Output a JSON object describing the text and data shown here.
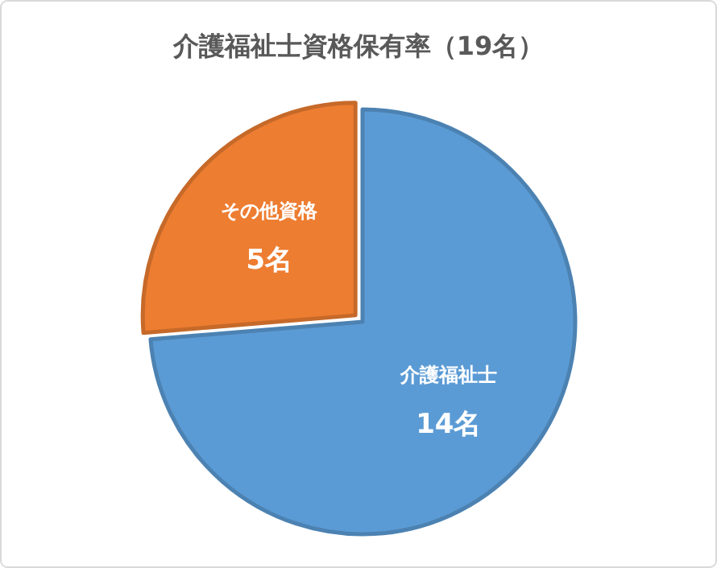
{
  "chart_data": {
    "type": "pie",
    "title": "介護福祉士資格保有率（19名）",
    "categories": [
      "介護福祉士",
      "その他資格"
    ],
    "values": [
      14,
      5
    ],
    "colors": [
      "#5b9bd5",
      "#ed7d31"
    ],
    "value_labels": [
      "14名",
      "5名"
    ]
  }
}
